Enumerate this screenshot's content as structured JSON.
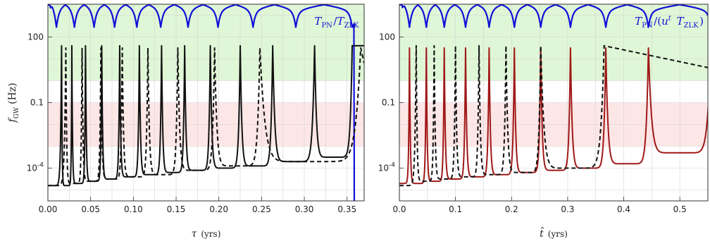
{
  "chart_data": [
    {
      "type": "line",
      "xlabel": "τ (yrs)",
      "ylabel": "f_GW (Hz)",
      "annotation": "T_PN/T_ZLK",
      "xlim": [
        0.0,
        0.37
      ],
      "ylim_log10": [
        -5.5,
        3.5
      ],
      "y_scale": "log",
      "xticks": [
        "0.00",
        "0.05",
        "0.10",
        "0.15",
        "0.20",
        "0.25",
        "0.30",
        "0.35"
      ],
      "xtick_values": [
        0,
        0.05,
        0.1,
        0.15,
        0.2,
        0.25,
        0.3,
        0.35
      ],
      "yticks": [
        "100",
        "0.1",
        "10^-4"
      ],
      "ytick_log10": [
        2,
        -1,
        -4
      ],
      "bands_log10": [
        {
          "color": "#dff7d6",
          "from": 0,
          "to": 3.5
        },
        {
          "color": "#fde6e6",
          "from": -3,
          "to": -1
        }
      ],
      "series": [
        {
          "color": "#1010d8",
          "dash": "solid",
          "kind": "ratio",
          "min_log10": 3.0,
          "max_log10": 3.48,
          "dips": [
            0.01,
            0.031,
            0.054,
            0.078,
            0.104,
            0.132,
            0.164,
            0.199,
            0.24,
            0.29,
            0.356
          ],
          "end_x": 0.358
        },
        {
          "color": "#111111",
          "dash": "solid",
          "kind": "peaks",
          "start_log10": -4.8,
          "end_log10": 1.6,
          "peaks": [
            0.016,
            0.028,
            0.044,
            0.063,
            0.084,
            0.107,
            0.133,
            0.16,
            0.19,
            0.225,
            0.263,
            0.312,
            0.356
          ],
          "peak_log10": 1.6,
          "min_log10": [
            -4.8,
            -4.7,
            -4.6,
            -4.5,
            -4.4,
            -4.3,
            -4.2,
            -4.1,
            -4.0,
            -3.9,
            -3.7,
            -3.5
          ]
        },
        {
          "color": "#111111",
          "dash": "dashed",
          "kind": "peaks",
          "start_log10": -4.8,
          "end_log10": 0.8,
          "peaks": [
            0.021,
            0.04,
            0.062,
            0.087,
            0.117,
            0.152,
            0.195,
            0.248,
            0.366
          ],
          "peak_log10": 1.5,
          "min_log10": [
            -4.7,
            -4.6,
            -4.5,
            -4.4,
            -4.3,
            -4.1,
            -3.9,
            -3.7
          ]
        }
      ]
    },
    {
      "type": "line",
      "xlabel": "t̂ (yrs)",
      "ylabel": "",
      "annotation": "T_PN/(u^t T_ZLK)",
      "xlim": [
        0.0,
        0.55
      ],
      "ylim_log10": [
        -5.5,
        3.5
      ],
      "y_scale": "log",
      "xticks": [
        "0.0",
        "0.1",
        "0.2",
        "0.3",
        "0.4",
        "0.5"
      ],
      "xtick_values": [
        0,
        0.1,
        0.2,
        0.3,
        0.4,
        0.5
      ],
      "yticks": [
        "100",
        "0.1",
        "10^-4"
      ],
      "ytick_log10": [
        2,
        -1,
        -4
      ],
      "bands_log10": [
        {
          "color": "#dff7d6",
          "from": 0,
          "to": 3.5
        },
        {
          "color": "#fde6e6",
          "from": -3,
          "to": -1
        }
      ],
      "series": [
        {
          "color": "#1010d8",
          "dash": "solid",
          "kind": "ratio",
          "min_log10": 3.0,
          "max_log10": 3.48,
          "dips": [
            0.018,
            0.048,
            0.08,
            0.118,
            0.16,
            0.205,
            0.252,
            0.305,
            0.368,
            0.444,
            0.555
          ],
          "end_x": 0.555
        },
        {
          "color": "#a01818",
          "dash": "solid",
          "kind": "peaks",
          "start_log10": -4.7,
          "end_log10": 1.5,
          "peaks": [
            0.018,
            0.048,
            0.08,
            0.118,
            0.16,
            0.205,
            0.252,
            0.305,
            0.368,
            0.444,
            0.555
          ],
          "peak_log10": 1.5,
          "min_log10": [
            -4.7,
            -4.6,
            -4.5,
            -4.4,
            -4.3,
            -4.2,
            -4.1,
            -4.0,
            -3.8,
            -3.3
          ]
        },
        {
          "color": "#111111",
          "dash": "dashed",
          "kind": "peaks",
          "start_log10": -4.8,
          "end_log10": 0.6,
          "peaks": [
            0.03,
            0.062,
            0.1,
            0.142,
            0.19,
            0.252,
            0.365
          ],
          "peak_log10": 1.6,
          "min_log10": [
            -4.6,
            -4.5,
            -4.4,
            -4.3,
            -4.2,
            -4.0
          ]
        }
      ]
    }
  ]
}
